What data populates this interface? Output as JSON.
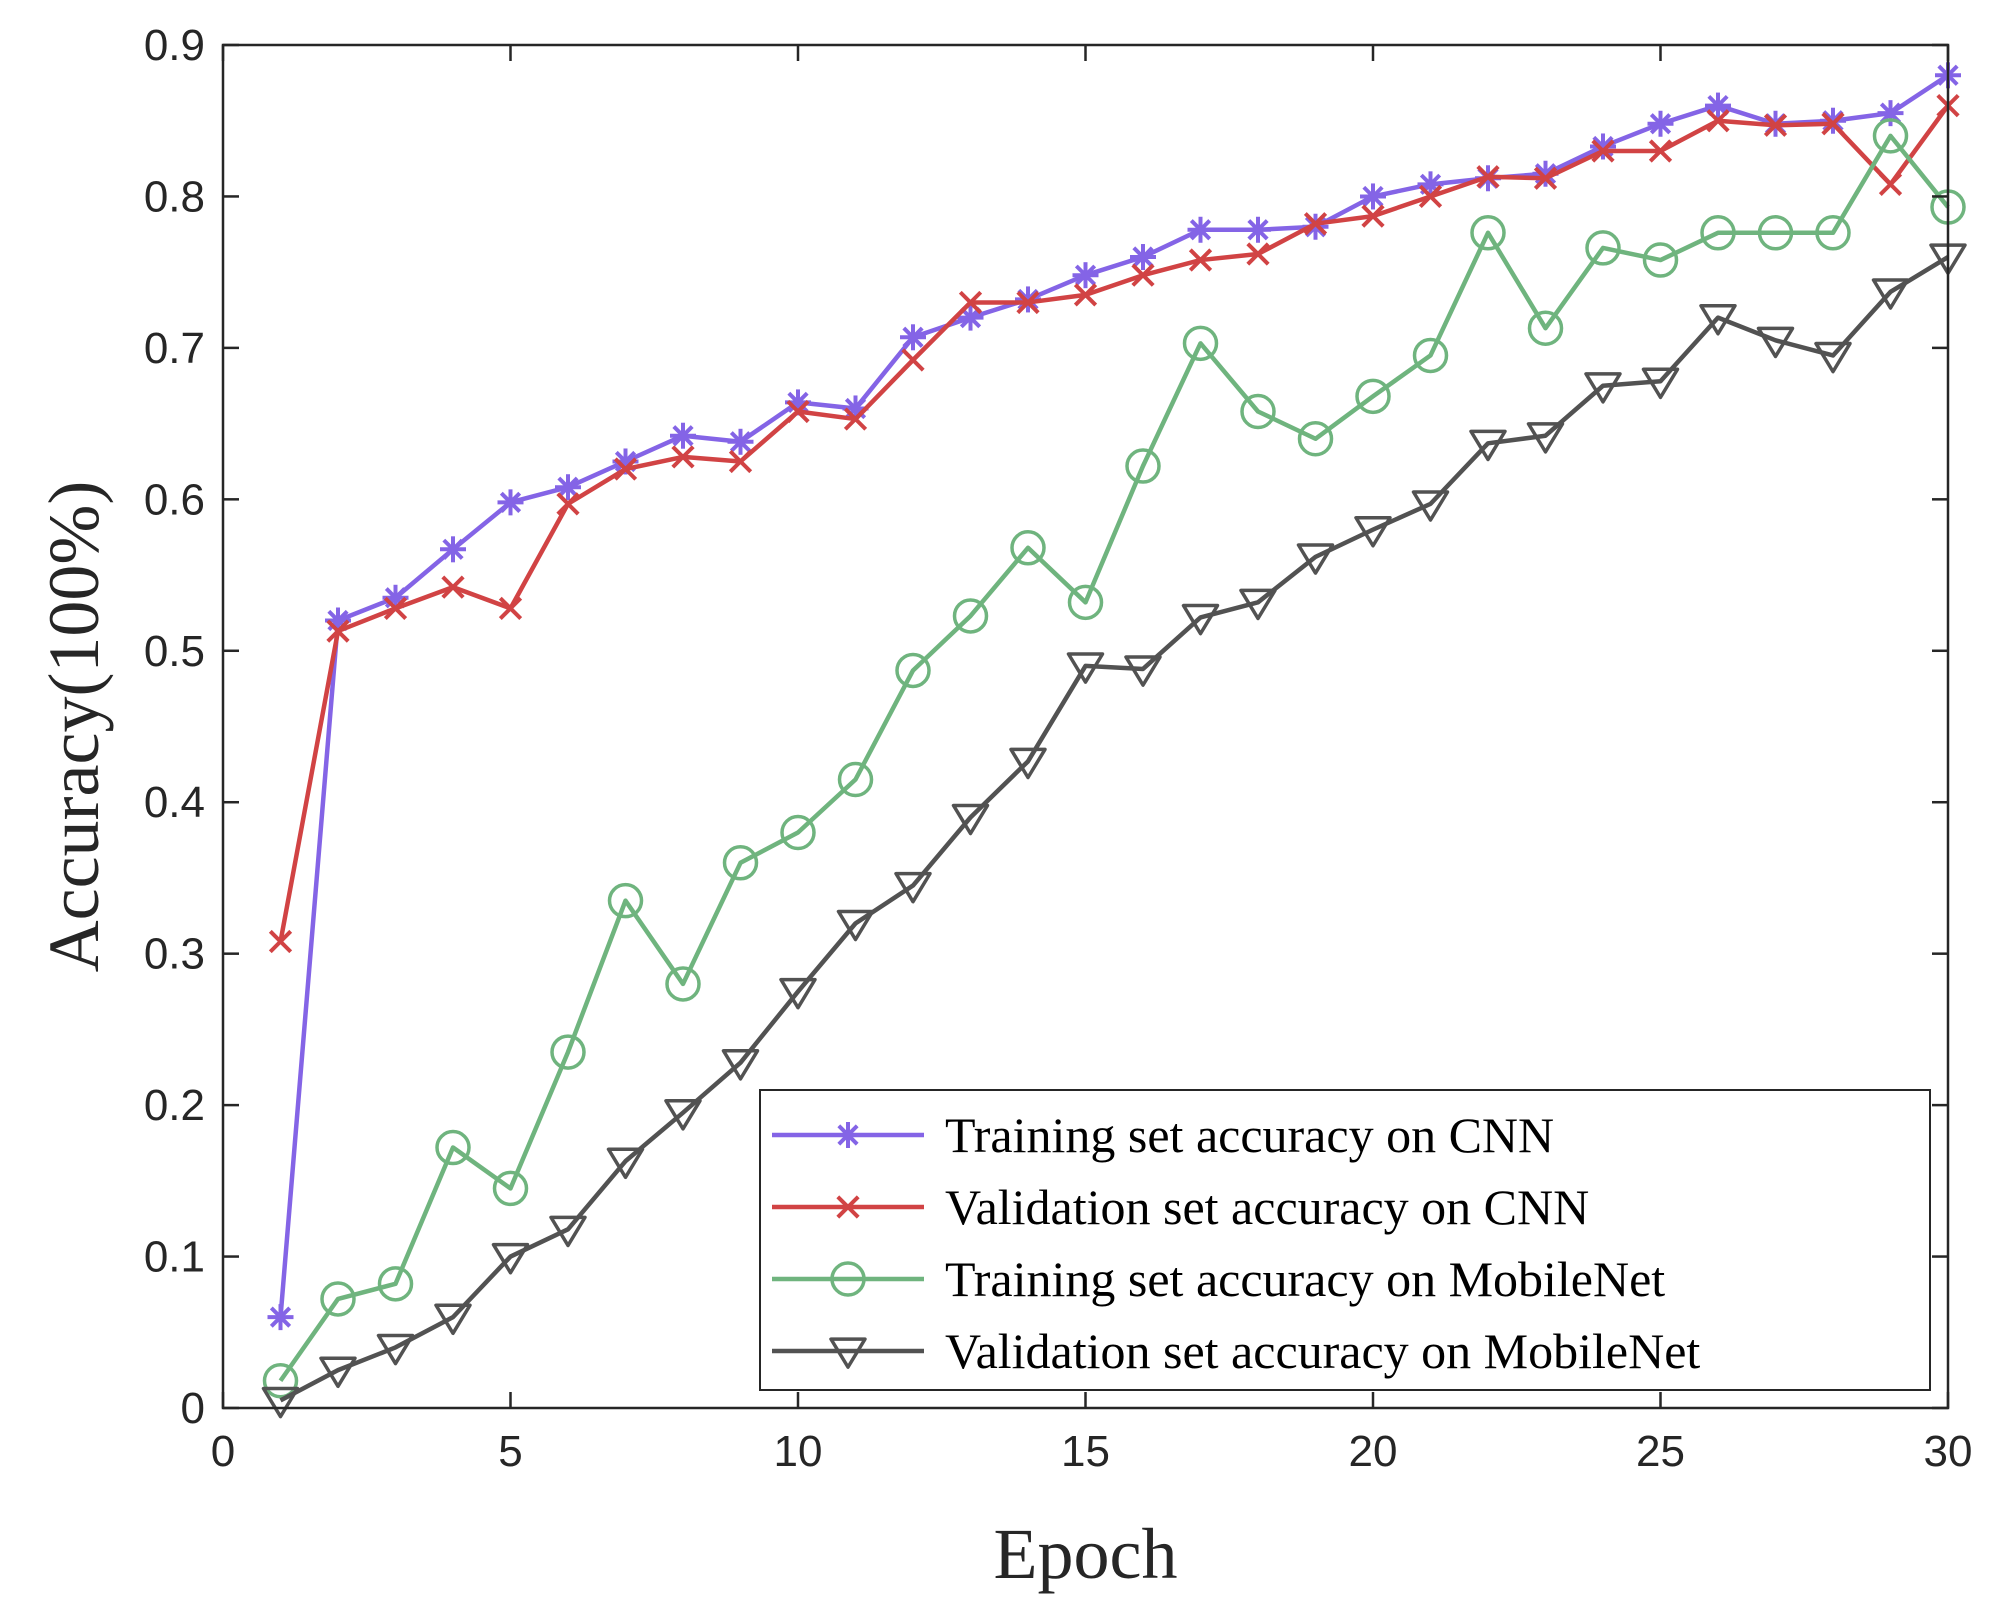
{
  "chart_data": {
    "type": "line",
    "title": "",
    "xlabel": "Epoch",
    "ylabel": "Accuracy(100%)",
    "xlim": [
      0,
      30
    ],
    "ylim": [
      0,
      0.9
    ],
    "x_ticks": [
      0,
      5,
      10,
      15,
      20,
      25,
      30
    ],
    "y_ticks": [
      0,
      0.1,
      0.2,
      0.3,
      0.4,
      0.5,
      0.6,
      0.7,
      0.8,
      0.9
    ],
    "grid": false,
    "legend_position": "bottom-right",
    "x": [
      1,
      2,
      3,
      4,
      5,
      6,
      7,
      8,
      9,
      10,
      11,
      12,
      13,
      14,
      15,
      16,
      17,
      18,
      19,
      20,
      21,
      22,
      23,
      24,
      25,
      26,
      27,
      28,
      29,
      30
    ],
    "series": [
      {
        "name": "Training set accuracy on CNN",
        "color": "#8464e6",
        "marker": "asterisk",
        "values": [
          0.06,
          0.52,
          0.535,
          0.567,
          0.598,
          0.608,
          0.625,
          0.642,
          0.638,
          0.664,
          0.66,
          0.707,
          0.72,
          0.732,
          0.748,
          0.76,
          0.778,
          0.778,
          0.78,
          0.8,
          0.808,
          0.812,
          0.815,
          0.833,
          0.848,
          0.86,
          0.848,
          0.85,
          0.855,
          0.88
        ]
      },
      {
        "name": "Validation set accuracy on CNN",
        "color": "#d14344",
        "marker": "x",
        "values": [
          0.308,
          0.513,
          0.528,
          0.542,
          0.528,
          0.597,
          0.62,
          0.628,
          0.625,
          0.658,
          0.653,
          0.692,
          0.73,
          0.73,
          0.735,
          0.748,
          0.758,
          0.762,
          0.782,
          0.787,
          0.8,
          0.813,
          0.812,
          0.83,
          0.83,
          0.85,
          0.847,
          0.848,
          0.808,
          0.86
        ]
      },
      {
        "name": "Training set accuracy on MobileNet",
        "color": "#6fb47e",
        "marker": "circle",
        "values": [
          0.018,
          0.072,
          0.082,
          0.172,
          0.145,
          0.235,
          0.335,
          0.28,
          0.36,
          0.38,
          0.415,
          0.487,
          0.523,
          0.568,
          0.532,
          0.622,
          0.703,
          0.658,
          0.64,
          0.668,
          0.695,
          0.776,
          0.713,
          0.766,
          0.758,
          0.776,
          0.776,
          0.776,
          0.84,
          0.793
        ]
      },
      {
        "name": "Validation set accuracy on MobileNet",
        "color": "#525252",
        "marker": "triangle-down",
        "values": [
          0.005,
          0.025,
          0.04,
          0.06,
          0.1,
          0.118,
          0.163,
          0.195,
          0.228,
          0.275,
          0.32,
          0.345,
          0.39,
          0.427,
          0.49,
          0.488,
          0.522,
          0.532,
          0.562,
          0.58,
          0.597,
          0.637,
          0.642,
          0.675,
          0.678,
          0.72,
          0.705,
          0.695,
          0.737,
          0.76
        ]
      }
    ]
  }
}
